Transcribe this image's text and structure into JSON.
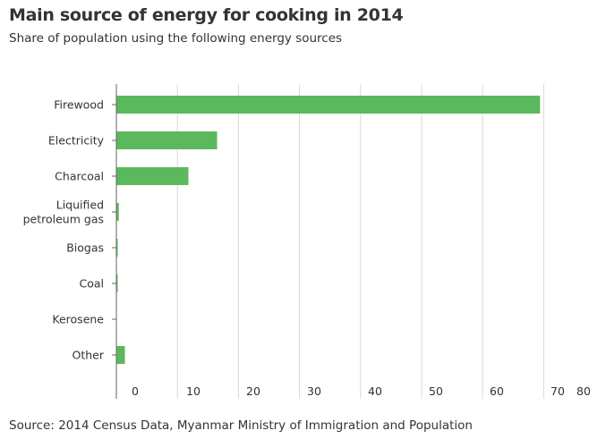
{
  "header": {
    "title": "Main source of energy for cooking in 2014",
    "subtitle": "Share of population using the following energy sources"
  },
  "footer": {
    "source": "Source: 2014 Census Data, Myanmar Ministry of Immigration and Population"
  },
  "colors": {
    "bar": "#5cb85c",
    "grid": "#d9d9d9",
    "axis": "#666666"
  },
  "chart_data": {
    "type": "bar",
    "orientation": "horizontal",
    "title": "Main source of energy for cooking in 2014",
    "subtitle": "Share of population using the following energy sources",
    "categories": [
      [
        "Firewood"
      ],
      [
        "Electricity"
      ],
      [
        "Charcoal"
      ],
      [
        "Liquified",
        "petroleum gas"
      ],
      [
        "Biogas"
      ],
      [
        "Coal"
      ],
      [
        "Kerosene"
      ],
      [
        "Other"
      ]
    ],
    "values": [
      69.4,
      16.5,
      11.8,
      0.4,
      0.2,
      0.1,
      0.0,
      1.4
    ],
    "xlim": [
      0,
      70
    ],
    "x_ticks": [
      "0",
      "10",
      "20",
      "30",
      "40",
      "50",
      "60",
      "70",
      "80"
    ],
    "grid": true,
    "xlabel": "",
    "ylabel": ""
  }
}
